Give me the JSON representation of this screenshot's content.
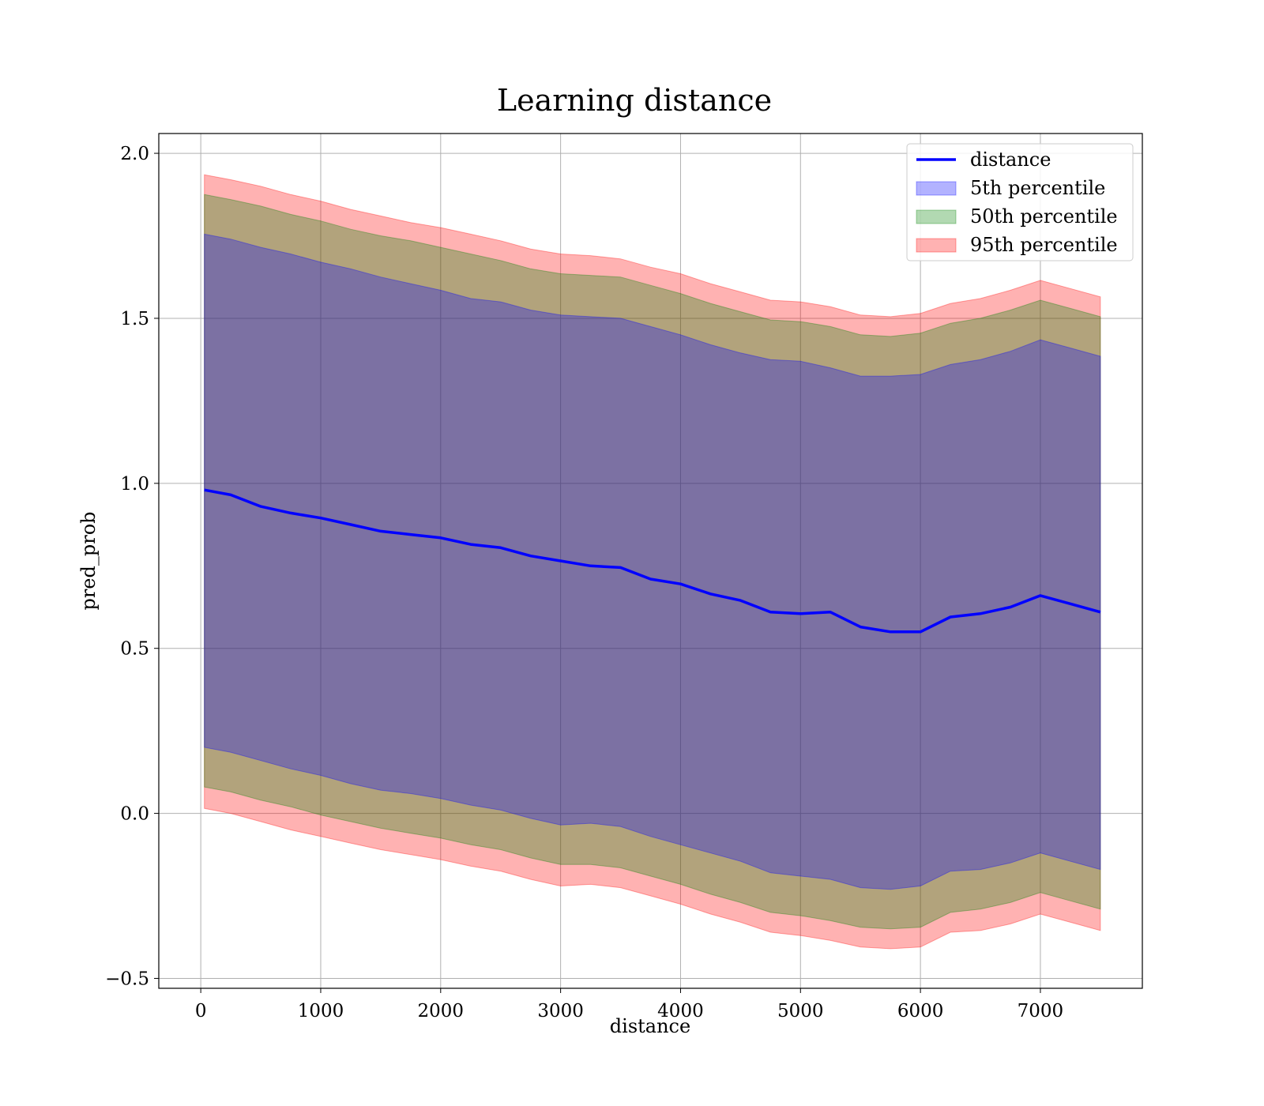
{
  "chart_data": {
    "type": "area",
    "title": "Learning distance",
    "xlabel": "distance",
    "ylabel": "pred_prob",
    "xlim": [
      -350,
      7850
    ],
    "ylim": [
      -0.53,
      2.06
    ],
    "xticks": [
      {
        "value": 0,
        "label": "0"
      },
      {
        "value": 1000,
        "label": "1000"
      },
      {
        "value": 2000,
        "label": "2000"
      },
      {
        "value": 3000,
        "label": "3000"
      },
      {
        "value": 4000,
        "label": "4000"
      },
      {
        "value": 5000,
        "label": "5000"
      },
      {
        "value": 6000,
        "label": "6000"
      },
      {
        "value": 7000,
        "label": "7000"
      }
    ],
    "yticks": [
      {
        "value": -0.5,
        "label": "−0.5"
      },
      {
        "value": 0.0,
        "label": "0.0"
      },
      {
        "value": 0.5,
        "label": "0.5"
      },
      {
        "value": 1.0,
        "label": "1.0"
      },
      {
        "value": 1.5,
        "label": "1.5"
      },
      {
        "value": 2.0,
        "label": "2.0"
      }
    ],
    "grid": true,
    "legend_position": "top-right",
    "x": [
      30,
      250,
      500,
      750,
      1000,
      1250,
      1500,
      1750,
      2000,
      2250,
      2500,
      2750,
      3000,
      3250,
      3500,
      3750,
      4000,
      4250,
      4500,
      4750,
      5000,
      5250,
      5500,
      5750,
      6000,
      6250,
      6500,
      6750,
      7000,
      7250,
      7500
    ],
    "series": [
      {
        "name": "distance",
        "kind": "line",
        "color": "#0000ff",
        "values": [
          0.98,
          0.965,
          0.93,
          0.91,
          0.895,
          0.875,
          0.855,
          0.845,
          0.835,
          0.815,
          0.805,
          0.78,
          0.765,
          0.75,
          0.745,
          0.71,
          0.695,
          0.665,
          0.645,
          0.61,
          0.605,
          0.61,
          0.565,
          0.55,
          0.55,
          0.595,
          0.605,
          0.625,
          0.66,
          0.635,
          0.61
        ]
      },
      {
        "name": "5th percentile",
        "kind": "band",
        "color": "#0000ff",
        "upper": [
          1.755,
          1.74,
          1.715,
          1.695,
          1.67,
          1.65,
          1.625,
          1.605,
          1.585,
          1.56,
          1.55,
          1.525,
          1.51,
          1.505,
          1.5,
          1.475,
          1.45,
          1.42,
          1.395,
          1.375,
          1.37,
          1.35,
          1.325,
          1.325,
          1.33,
          1.36,
          1.375,
          1.4,
          1.435,
          1.41,
          1.385
        ],
        "lower": [
          0.2,
          0.185,
          0.16,
          0.135,
          0.115,
          0.09,
          0.07,
          0.06,
          0.045,
          0.025,
          0.01,
          -0.015,
          -0.035,
          -0.03,
          -0.04,
          -0.07,
          -0.095,
          -0.12,
          -0.145,
          -0.18,
          -0.19,
          -0.2,
          -0.225,
          -0.23,
          -0.22,
          -0.175,
          -0.17,
          -0.15,
          -0.12,
          -0.145,
          -0.17
        ]
      },
      {
        "name": "50th percentile",
        "kind": "band",
        "color": "#008000",
        "upper": [
          1.875,
          1.86,
          1.84,
          1.815,
          1.795,
          1.77,
          1.75,
          1.735,
          1.715,
          1.695,
          1.675,
          1.65,
          1.635,
          1.63,
          1.625,
          1.6,
          1.575,
          1.545,
          1.52,
          1.495,
          1.49,
          1.475,
          1.45,
          1.445,
          1.455,
          1.485,
          1.5,
          1.525,
          1.555,
          1.53,
          1.505
        ],
        "lower": [
          0.08,
          0.065,
          0.04,
          0.02,
          -0.005,
          -0.025,
          -0.045,
          -0.06,
          -0.075,
          -0.095,
          -0.11,
          -0.135,
          -0.155,
          -0.155,
          -0.165,
          -0.19,
          -0.215,
          -0.245,
          -0.27,
          -0.3,
          -0.31,
          -0.325,
          -0.345,
          -0.35,
          -0.345,
          -0.3,
          -0.29,
          -0.27,
          -0.24,
          -0.265,
          -0.29
        ]
      },
      {
        "name": "95th percentile",
        "kind": "band",
        "color": "#ff0000",
        "upper": [
          1.935,
          1.92,
          1.9,
          1.875,
          1.855,
          1.83,
          1.81,
          1.79,
          1.775,
          1.755,
          1.735,
          1.71,
          1.695,
          1.69,
          1.68,
          1.655,
          1.635,
          1.605,
          1.58,
          1.555,
          1.55,
          1.535,
          1.51,
          1.505,
          1.515,
          1.545,
          1.56,
          1.585,
          1.615,
          1.59,
          1.565
        ],
        "lower": [
          0.015,
          0.0,
          -0.025,
          -0.05,
          -0.07,
          -0.09,
          -0.11,
          -0.125,
          -0.14,
          -0.16,
          -0.175,
          -0.2,
          -0.22,
          -0.215,
          -0.225,
          -0.25,
          -0.275,
          -0.305,
          -0.33,
          -0.36,
          -0.37,
          -0.385,
          -0.405,
          -0.41,
          -0.405,
          -0.36,
          -0.355,
          -0.335,
          -0.305,
          -0.33,
          -0.355
        ]
      }
    ]
  }
}
